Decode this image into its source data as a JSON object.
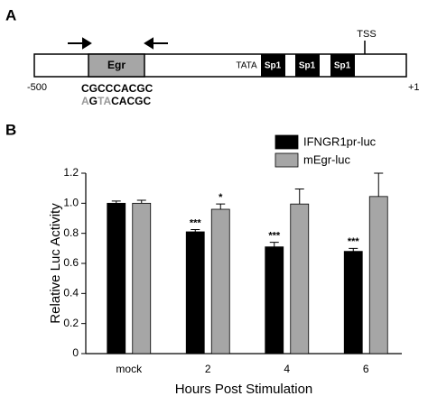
{
  "panel_a": {
    "label": "A",
    "tss": "TSS",
    "egr": "Egr",
    "tata": "TATA",
    "sp1": [
      "Sp1",
      "Sp1",
      "Sp1"
    ],
    "start": "-500",
    "end": "+1",
    "sequence": "CGCCCACGC",
    "mutant_sequence": [
      {
        "text": "A",
        "color": "#999999"
      },
      {
        "text": "G",
        "color": "#000000"
      },
      {
        "text": "TA",
        "color": "#999999"
      },
      {
        "text": "CACGC",
        "color": "#000000"
      }
    ]
  },
  "chart_data": {
    "type": "bar",
    "panel_label": "B",
    "ylabel": "Relative Luc Activity",
    "xlabel": "Hours Post Stimulation",
    "categories": [
      "mock",
      "2",
      "4",
      "6"
    ],
    "series": [
      {
        "name": "IFNGR1pr-luc",
        "color": "#000000",
        "values": [
          1.0,
          0.81,
          0.71,
          0.68
        ],
        "errors": [
          0.015,
          0.015,
          0.03,
          0.02
        ],
        "significance": [
          null,
          "***",
          "***",
          "***"
        ]
      },
      {
        "name": "mEgr-luc",
        "color": "#a6a6a6",
        "values": [
          1.0,
          0.96,
          0.995,
          1.045
        ],
        "errors": [
          0.02,
          0.035,
          0.1,
          0.155
        ],
        "significance": [
          null,
          "*",
          null,
          null
        ]
      }
    ],
    "ylim": [
      0,
      1.2
    ],
    "yticks": [
      0,
      0.2,
      0.4,
      0.6,
      0.8,
      {
        "value": 1,
        "label": "1.0"
      },
      1.2
    ]
  }
}
